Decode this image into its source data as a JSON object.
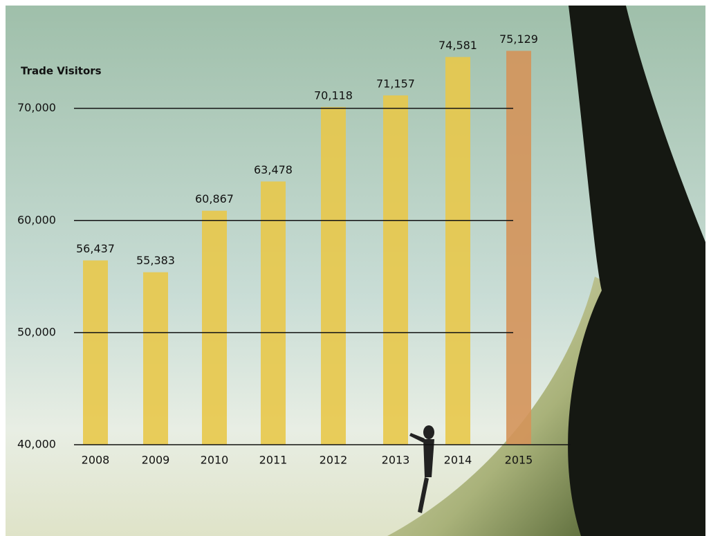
{
  "chart_data": {
    "type": "bar",
    "ylabel": "Trade Visitors",
    "categories": [
      "2008",
      "2009",
      "2010",
      "2011",
      "2012",
      "2013",
      "2014",
      "2015"
    ],
    "values": [
      56437,
      55383,
      60867,
      63478,
      70118,
      71157,
      74581,
      75129
    ],
    "value_labels": [
      "56,437",
      "55,383",
      "60,867",
      "63,478",
      "70,118",
      "71,157",
      "74,581",
      "75,129"
    ],
    "colors": [
      "#e8c84a",
      "#e8c84a",
      "#e8c84a",
      "#e8c84a",
      "#e8c84a",
      "#e8c84a",
      "#e8c84a",
      "#d4935a"
    ],
    "ylim": [
      40000,
      78000
    ],
    "yticks": [
      {
        "value": 40000,
        "label": "40,000"
      },
      {
        "value": 50000,
        "label": "50,000"
      },
      {
        "value": 60000,
        "label": "60,000"
      },
      {
        "value": 70000,
        "label": "70,000"
      }
    ],
    "grid": true
  }
}
